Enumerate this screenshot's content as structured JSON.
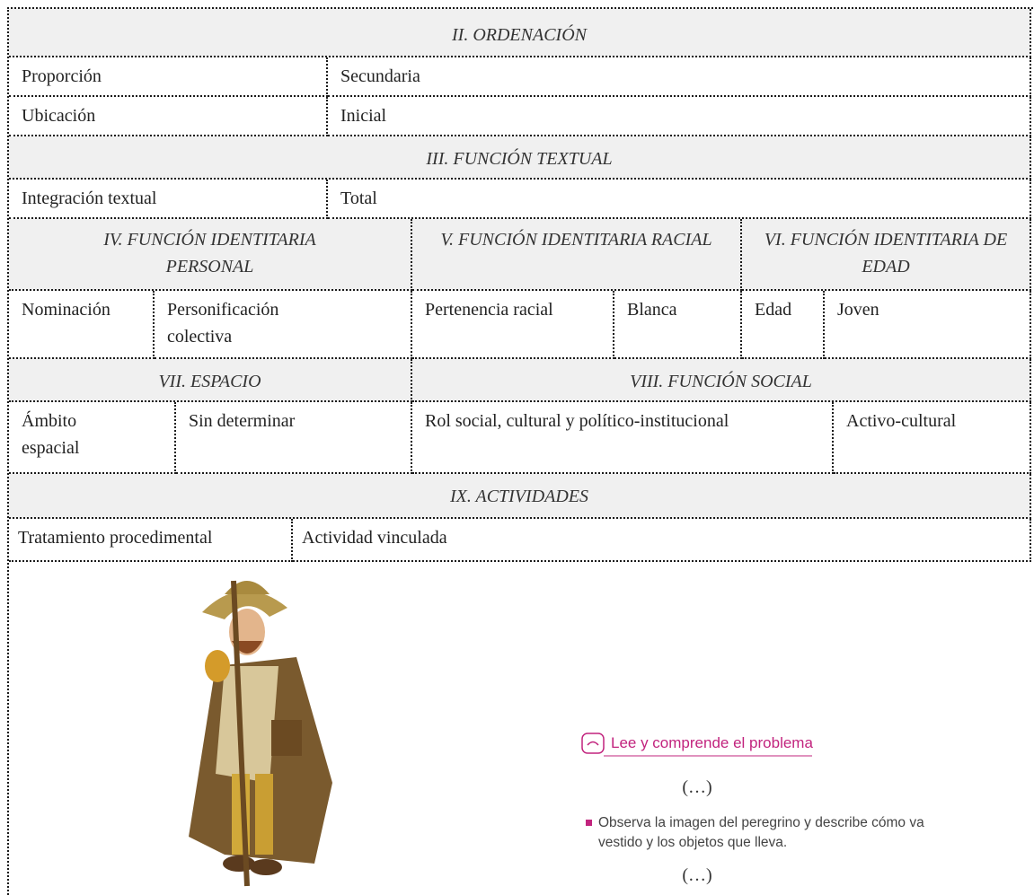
{
  "table": {
    "ordenacion": {
      "title": "II. ORDENACIÓN",
      "rows": [
        [
          "Proporción",
          "Secundaria"
        ],
        [
          "Ubicación",
          "Inicial"
        ]
      ]
    },
    "funcion_textual": {
      "title": "III. FUNCIÓN TEXTUAL",
      "rows": [
        [
          "Integración textual",
          "Total"
        ]
      ]
    },
    "identitaria_personal": {
      "title": "IV. FUNCIÓN IDENTITARIA PERSONAL",
      "row": [
        "Nominación",
        "Personificación colectiva"
      ]
    },
    "identitaria_racial": {
      "title": "V. FUNCIÓN IDENTITARIA RACIAL",
      "row": [
        "Pertenencia racial",
        "Blanca"
      ]
    },
    "identitaria_edad": {
      "title": "VI. FUNCIÓN IDENTITARIA DE EDAD",
      "row": [
        "Edad",
        "Joven"
      ]
    },
    "espacio": {
      "title": "VII. ESPACIO",
      "row": [
        "Ámbito espacial",
        "Sin determinar"
      ]
    },
    "funcion_social": {
      "title": "VIII. FUNCIÓN SOCIAL",
      "row": [
        "Rol social, cultural y político-institucional",
        "Activo-cultural"
      ]
    },
    "actividades": {
      "title": "IX. ACTIVIDADES",
      "row": [
        "Tratamiento procedimental",
        "Actividad vinculada"
      ]
    }
  },
  "activity": {
    "heading": "Lee y comprende el problema",
    "ellipsis_top": "(…)",
    "bullet": "Observa la imagen del peregrino y describe cómo va vestido y los objetos que lleva.",
    "ellipsis_bottom": "(…)"
  }
}
